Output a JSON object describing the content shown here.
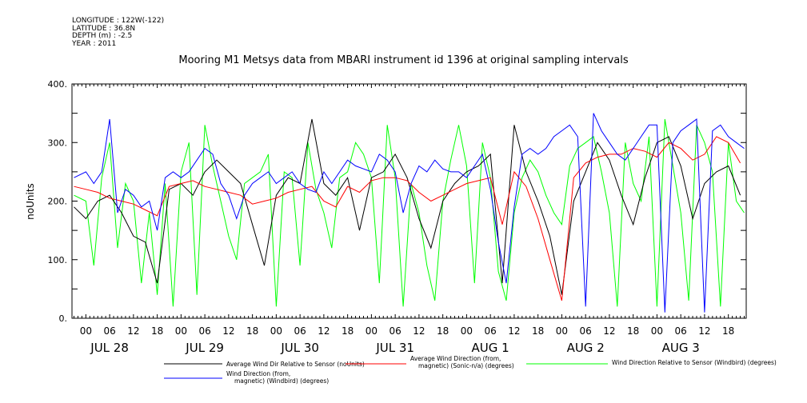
{
  "header": {
    "meta_lines": [
      "LONGITUDE : 122W(-122)",
      "LATITUDE : 36.8N",
      "DEPTH (m) : -2.5",
      "YEAR : 2011"
    ],
    "title": "Mooring M1 Metsys data from MBARI instrument id 1396 at original sampling intervals"
  },
  "chart_data": {
    "type": "line",
    "ylabel": "noUnits",
    "ylim": [
      0,
      400
    ],
    "yticks": [
      0,
      100,
      200,
      300,
      400
    ],
    "ytick_labels": [
      "0.",
      "100.",
      "200.",
      "300.",
      "400."
    ],
    "x_hour_labels": [
      "00",
      "06",
      "12",
      "18",
      "00",
      "06",
      "12",
      "18",
      "00",
      "06",
      "12",
      "18",
      "00",
      "06",
      "12",
      "18",
      "00",
      "06",
      "12",
      "18",
      "00",
      "06",
      "12",
      "18",
      "00",
      "06",
      "12",
      "18"
    ],
    "x_day_labels": [
      "JUL 28",
      "JUL 29",
      "JUL 30",
      "JUL 31",
      "AUG  1",
      "AUG  2",
      "AUG  3"
    ],
    "xlim_hours": [
      -3.5,
      166.5
    ],
    "colors": {
      "black": "#000000",
      "red": "#ff0000",
      "green": "#00ff00",
      "blue": "#0000ff"
    },
    "series": [
      {
        "name": "Average Wind Dir Relative to Sensor (noUnits)",
        "color": "#000000",
        "x": [
          -3,
          0,
          3,
          6,
          9,
          12,
          15,
          18,
          21,
          24,
          27,
          30,
          33,
          36,
          39,
          42,
          45,
          48,
          51,
          54,
          57,
          60,
          63,
          66,
          69,
          72,
          75,
          78,
          81,
          84,
          87,
          90,
          93,
          96,
          99,
          102,
          105,
          108,
          111,
          114,
          117,
          120,
          123,
          126,
          129,
          132,
          135,
          138,
          141,
          144,
          147,
          150,
          153,
          156,
          159,
          162,
          165
        ],
        "y": [
          190,
          170,
          200,
          210,
          180,
          140,
          130,
          60,
          220,
          230,
          210,
          250,
          270,
          250,
          230,
          160,
          90,
          210,
          240,
          230,
          340,
          230,
          210,
          240,
          150,
          240,
          250,
          280,
          240,
          170,
          120,
          200,
          230,
          250,
          260,
          280,
          60,
          330,
          250,
          200,
          140,
          40,
          200,
          250,
          300,
          270,
          210,
          160,
          240,
          300,
          310,
          260,
          170,
          230,
          250,
          260,
          210
        ]
      },
      {
        "name": "Average Wind Direction (from, magnetic) (Sonic-n/a) (degrees)",
        "color": "#ff0000",
        "x": [
          -3,
          0,
          3,
          6,
          9,
          12,
          15,
          18,
          21,
          24,
          27,
          30,
          33,
          36,
          39,
          42,
          45,
          48,
          51,
          54,
          57,
          60,
          63,
          66,
          69,
          72,
          75,
          78,
          81,
          84,
          87,
          90,
          93,
          96,
          99,
          102,
          105,
          108,
          111,
          114,
          117,
          120,
          123,
          126,
          129,
          132,
          135,
          138,
          141,
          144,
          147,
          150,
          153,
          156,
          159,
          162,
          165
        ],
        "y": [
          225,
          220,
          215,
          205,
          200,
          195,
          185,
          175,
          225,
          230,
          235,
          225,
          220,
          215,
          210,
          195,
          200,
          205,
          215,
          220,
          225,
          200,
          190,
          225,
          215,
          235,
          240,
          240,
          235,
          215,
          200,
          210,
          220,
          230,
          235,
          240,
          160,
          250,
          225,
          170,
          100,
          30,
          240,
          265,
          275,
          280,
          280,
          290,
          285,
          275,
          300,
          290,
          270,
          280,
          310,
          300,
          265
        ]
      },
      {
        "name": "Wind Direction Relative to Sensor (Windbird) (degrees)",
        "color": "#00ff00",
        "x": [
          -3,
          0,
          2,
          4,
          6,
          8,
          10,
          12,
          14,
          16,
          18,
          20,
          22,
          24,
          26,
          28,
          30,
          32,
          34,
          36,
          38,
          40,
          42,
          44,
          46,
          48,
          50,
          52,
          54,
          56,
          58,
          60,
          62,
          64,
          66,
          68,
          70,
          72,
          74,
          76,
          78,
          80,
          82,
          84,
          86,
          88,
          90,
          92,
          94,
          96,
          98,
          100,
          102,
          104,
          106,
          108,
          110,
          112,
          114,
          116,
          118,
          120,
          122,
          124,
          126,
          128,
          130,
          132,
          134,
          136,
          138,
          140,
          142,
          144,
          146,
          148,
          150,
          152,
          154,
          156,
          158,
          160,
          162,
          164,
          166
        ],
        "y": [
          210,
          200,
          90,
          240,
          300,
          120,
          230,
          200,
          60,
          180,
          40,
          230,
          20,
          250,
          300,
          40,
          330,
          260,
          200,
          140,
          100,
          230,
          240,
          250,
          280,
          20,
          250,
          240,
          90,
          300,
          220,
          180,
          120,
          240,
          250,
          300,
          280,
          240,
          60,
          330,
          240,
          20,
          230,
          180,
          90,
          30,
          200,
          270,
          330,
          260,
          60,
          300,
          240,
          80,
          30,
          180,
          240,
          270,
          250,
          210,
          180,
          160,
          260,
          290,
          300,
          310,
          250,
          180,
          20,
          300,
          230,
          200,
          310,
          20,
          340,
          260,
          180,
          30,
          330,
          300,
          250,
          20,
          300,
          200,
          180
        ]
      },
      {
        "name": "Wind Direction (from, magnetic) (Windbird) (degrees)",
        "color": "#0000ff",
        "x": [
          -3,
          0,
          2,
          4,
          6,
          8,
          10,
          12,
          14,
          16,
          18,
          20,
          22,
          24,
          26,
          28,
          30,
          32,
          34,
          36,
          38,
          40,
          42,
          44,
          46,
          48,
          50,
          52,
          54,
          56,
          58,
          60,
          62,
          64,
          66,
          68,
          70,
          72,
          74,
          76,
          78,
          80,
          82,
          84,
          86,
          88,
          90,
          92,
          94,
          96,
          98,
          100,
          102,
          104,
          106,
          108,
          110,
          112,
          114,
          116,
          118,
          120,
          122,
          124,
          126,
          128,
          130,
          132,
          134,
          136,
          138,
          140,
          142,
          144,
          146,
          148,
          150,
          152,
          154,
          156,
          158,
          160,
          162,
          164,
          166
        ],
        "y": [
          240,
          250,
          230,
          250,
          340,
          180,
          220,
          210,
          190,
          200,
          150,
          240,
          250,
          240,
          250,
          270,
          290,
          280,
          230,
          210,
          170,
          210,
          230,
          240,
          250,
          230,
          240,
          250,
          230,
          220,
          215,
          250,
          230,
          250,
          270,
          260,
          255,
          250,
          280,
          270,
          250,
          180,
          230,
          260,
          250,
          270,
          255,
          250,
          250,
          240,
          260,
          280,
          220,
          130,
          60,
          190,
          280,
          290,
          280,
          290,
          310,
          320,
          330,
          310,
          20,
          350,
          320,
          300,
          280,
          270,
          290,
          310,
          330,
          330,
          10,
          300,
          320,
          330,
          340,
          10,
          320,
          330,
          310,
          300,
          290
        ]
      }
    ]
  },
  "legend": [
    {
      "label_lines": [
        "Average Wind Dir Relative to Sensor (noUnits)"
      ],
      "color": "#000000"
    },
    {
      "label_lines": [
        "Average Wind Direction (from,",
        "magnetic) (Sonic-n/a) (degrees)"
      ],
      "color": "#ff0000"
    },
    {
      "label_lines": [
        "Wind Direction Relative to Sensor (Windbird) (degrees)"
      ],
      "color": "#00ff00"
    },
    {
      "label_lines": [
        "Wind Direction (from,",
        "magnetic) (Windbird) (degrees)"
      ],
      "color": "#0000ff"
    }
  ]
}
